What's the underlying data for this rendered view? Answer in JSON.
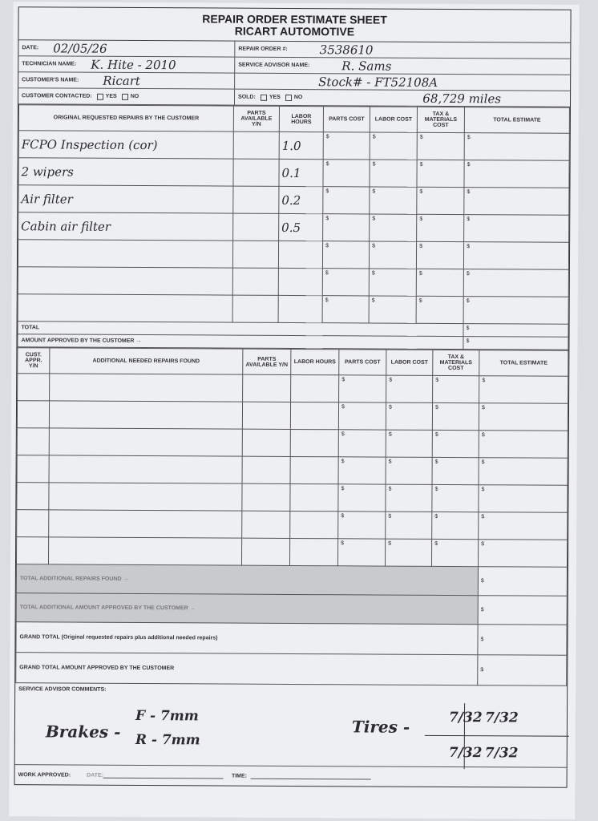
{
  "header": {
    "title": "REPAIR ORDER ESTIMATE SHEET",
    "subtitle": "RICART AUTOMOTIVE"
  },
  "info": {
    "date_label": "DATE:",
    "date": "02/05/26",
    "repair_order_label": "REPAIR ORDER #:",
    "repair_order": "3538610",
    "technician_label": "TECHNICIAN NAME:",
    "technician": "K. Hite - 2010",
    "advisor_label": "SERVICE ADVISOR NAME:",
    "advisor": "R. Sams",
    "customer_label": "CUSTOMER'S NAME:",
    "customer": "Ricart",
    "stock": "Stock# - FT52108A",
    "contacted_label": "CUSTOMER CONTACTED:",
    "yes": "YES",
    "no": "NO",
    "sold_label": "SOLD:",
    "mileage": "68,729 miles"
  },
  "original": {
    "headers": [
      "ORIGINAL REQUESTED REPAIRS BY THE CUSTOMER",
      "PARTS AVAILABLE Y/N",
      "LABOR HOURS",
      "PARTS COST",
      "LABOR COST",
      "TAX & MATERIALS COST",
      "TOTAL ESTIMATE"
    ],
    "rows": [
      {
        "desc": "FCPO Inspection (cor)",
        "hours": "1.0"
      },
      {
        "desc": "2 wipers",
        "hours": "0.1"
      },
      {
        "desc": "Air filter",
        "hours": "0.2"
      },
      {
        "desc": "Cabin air filter",
        "hours": "0.5"
      },
      {
        "desc": "",
        "hours": ""
      },
      {
        "desc": "",
        "hours": ""
      },
      {
        "desc": "",
        "hours": ""
      }
    ],
    "total_label": "TOTAL",
    "approved_label": "AMOUNT APPROVED BY THE CUSTOMER →"
  },
  "additional": {
    "headers": [
      "CUST. APPR. Y/N",
      "ADDITIONAL NEEDED REPAIRS FOUND",
      "PARTS AVAILABLE Y/N",
      "LABOR HOURS",
      "PARTS COST",
      "LABOR COST",
      "TAX & MATERIALS COST",
      "TOTAL ESTIMATE"
    ],
    "row_count": 7,
    "total_label": "TOTAL ADDITIONAL REPAIRS FOUND →",
    "approved_label": "TOTAL ADDITIONAL AMOUNT APPROVED BY THE CUSTOMER →"
  },
  "grand": {
    "total_label": "GRAND TOTAL (Original requested repairs plus additional needed repairs)",
    "approved_label": "GRAND TOTAL AMOUNT APPROVED BY THE CUSTOMER"
  },
  "dollar": "$",
  "comments": {
    "label": "SERVICE ADVISOR COMMENTS:",
    "brakes": "Brakes -",
    "brakes_f": "F - 7mm",
    "brakes_r": "R - 7mm",
    "tires": "Tires -",
    "tire_lf": "7/32",
    "tire_rf": "7/32",
    "tire_lr": "7/32",
    "tire_rr": "7/32"
  },
  "footer": {
    "work_approved": "WORK APPROVED:",
    "date": "DATE:",
    "time": "TIME:"
  }
}
